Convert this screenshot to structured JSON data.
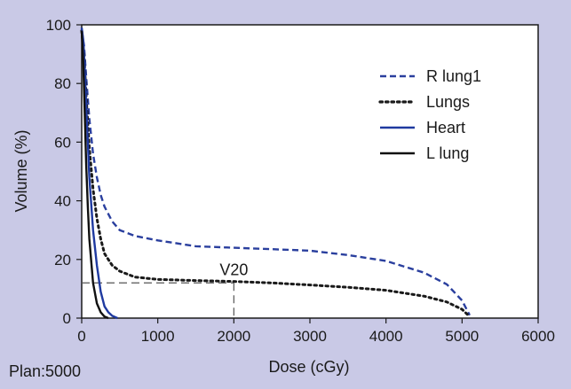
{
  "chart_data": {
    "type": "line",
    "title": "",
    "xlabel": "Dose (cGy)",
    "ylabel": "Volume (%)",
    "xlim": [
      0,
      6000
    ],
    "ylim": [
      0,
      100
    ],
    "x_ticks": [
      "0",
      "1000",
      "2000",
      "3000",
      "4000",
      "5000",
      "6000"
    ],
    "y_ticks": [
      "0",
      "20",
      "40",
      "60",
      "80",
      "100"
    ],
    "grid": false,
    "legend_position": "top-right",
    "footnote": "Plan:5000",
    "annotation": {
      "text": "V20",
      "dose": 2000,
      "volume": 12
    },
    "series": [
      {
        "name": "R lung1",
        "color": "#2a3f9e",
        "style": "dashed",
        "x": [
          0,
          30,
          60,
          100,
          150,
          200,
          250,
          300,
          400,
          500,
          700,
          1000,
          1500,
          2000,
          2500,
          3000,
          3500,
          4000,
          4500,
          4800,
          5000,
          5100
        ],
        "y": [
          98,
          93,
          82,
          68,
          56,
          48,
          42,
          38,
          33,
          30,
          28,
          26.5,
          24.5,
          24,
          23.5,
          23,
          21.5,
          19.5,
          15.5,
          11.5,
          6,
          1
        ]
      },
      {
        "name": "Lungs",
        "color": "#1a1a1a",
        "style": "dotted",
        "x": [
          0,
          30,
          60,
          100,
          150,
          200,
          250,
          300,
          400,
          500,
          700,
          1000,
          1500,
          2000,
          2500,
          3000,
          3500,
          4000,
          4500,
          4800,
          5000,
          5100
        ],
        "y": [
          98,
          90,
          75,
          58,
          44,
          34,
          27,
          22,
          18,
          16,
          14,
          13.2,
          12.8,
          12.5,
          12,
          11.3,
          10.5,
          9.5,
          7.5,
          5.5,
          3,
          0.5
        ]
      },
      {
        "name": "Heart",
        "color": "#1f3aa0",
        "style": "solid",
        "x": [
          0,
          20,
          40,
          60,
          80,
          100,
          150,
          200,
          250,
          300,
          350,
          400,
          470
        ],
        "y": [
          99,
          95,
          85,
          72,
          60,
          48,
          30,
          18,
          9,
          4,
          2,
          0.8,
          0
        ]
      },
      {
        "name": "L lung",
        "color": "#111111",
        "style": "solid",
        "x": [
          0,
          20,
          40,
          60,
          80,
          100,
          150,
          200,
          250,
          300,
          350
        ],
        "y": [
          98,
          88,
          70,
          52,
          38,
          27,
          12,
          5,
          2,
          0.5,
          0
        ]
      }
    ]
  }
}
